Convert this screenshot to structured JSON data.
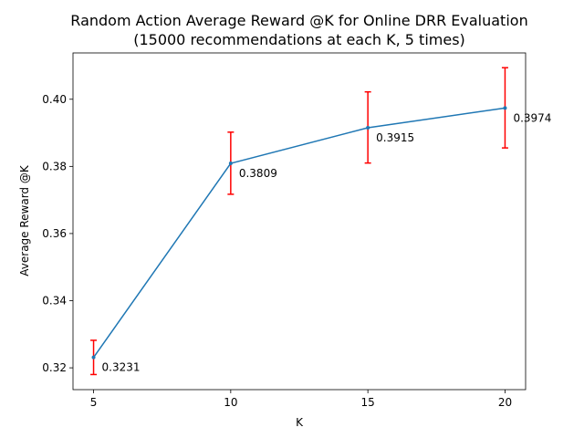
{
  "chart_data": {
    "type": "line",
    "title": "Random Action Average Reward @K for Online DRR Evaluation",
    "subtitle": "(15000 recommendations at each K, 5 times)",
    "xlabel": "K",
    "ylabel": "Average Reward @K",
    "x": [
      5,
      10,
      15,
      20
    ],
    "y": [
      0.3231,
      0.3809,
      0.3915,
      0.3974
    ],
    "error_low": [
      0.318,
      0.3717,
      0.381,
      0.3855
    ],
    "error_high": [
      0.3282,
      0.3902,
      0.4022,
      0.4094
    ],
    "data_labels": [
      "0.3231",
      "0.3809",
      "0.3915",
      "0.3974"
    ],
    "xticks": [
      5,
      10,
      15,
      20
    ],
    "yticks": [
      0.32,
      0.34,
      0.36,
      0.38,
      0.4
    ],
    "ytick_labels": [
      "0.32",
      "0.34",
      "0.36",
      "0.38",
      "0.40"
    ],
    "xlim": [
      4.25,
      20.75
    ],
    "ylim": [
      0.3135,
      0.4138
    ],
    "grid": false,
    "line_color": "#1f77b4",
    "error_color": "#ff0000"
  }
}
